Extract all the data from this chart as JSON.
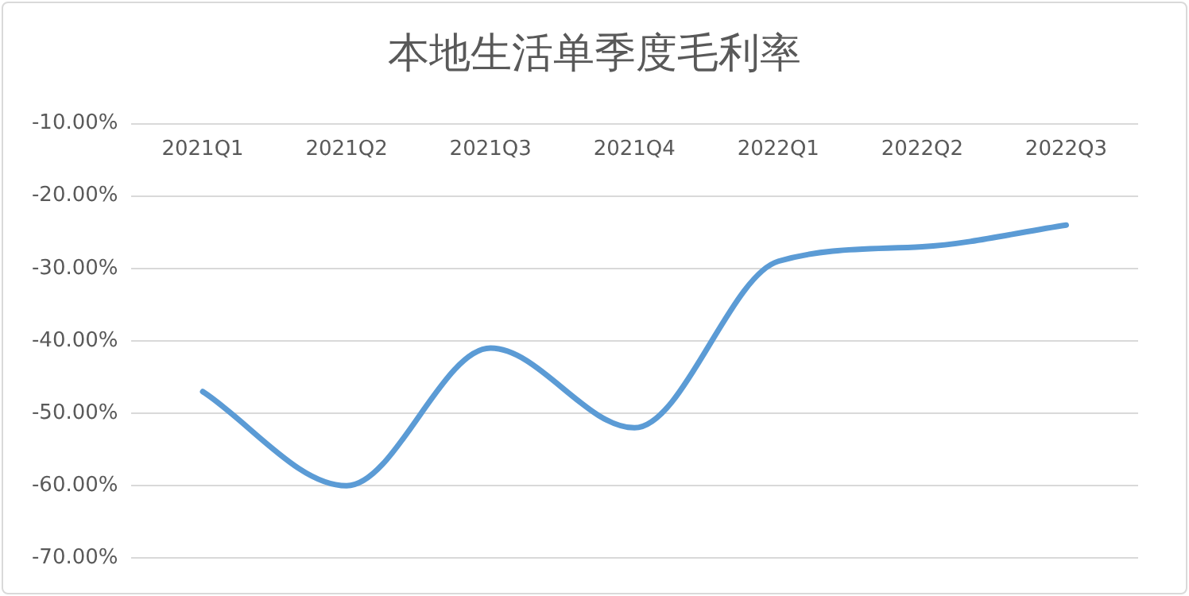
{
  "chart_data": {
    "type": "line",
    "title": "本地生活单季度毛利率",
    "categories": [
      "2021Q1",
      "2021Q2",
      "2021Q3",
      "2021Q4",
      "2022Q1",
      "2022Q2",
      "2022Q3"
    ],
    "series": [
      {
        "color": "#5b9bd5",
        "values": [
          -47,
          -60,
          -41,
          -52,
          -29,
          -27,
          -24
        ]
      }
    ],
    "ylim": [
      -70,
      -10
    ],
    "yticks": [
      {
        "value": -10,
        "label": "-10.00%"
      },
      {
        "value": -20,
        "label": "-20.00%"
      },
      {
        "value": -30,
        "label": "-30.00%"
      },
      {
        "value": -40,
        "label": "-40.00%"
      },
      {
        "value": -50,
        "label": "-50.00%"
      },
      {
        "value": -60,
        "label": "-60.00%"
      },
      {
        "value": -70,
        "label": "-70.00%"
      }
    ],
    "grid": "y",
    "legend": false,
    "marker": "none",
    "line_style": "solid"
  }
}
